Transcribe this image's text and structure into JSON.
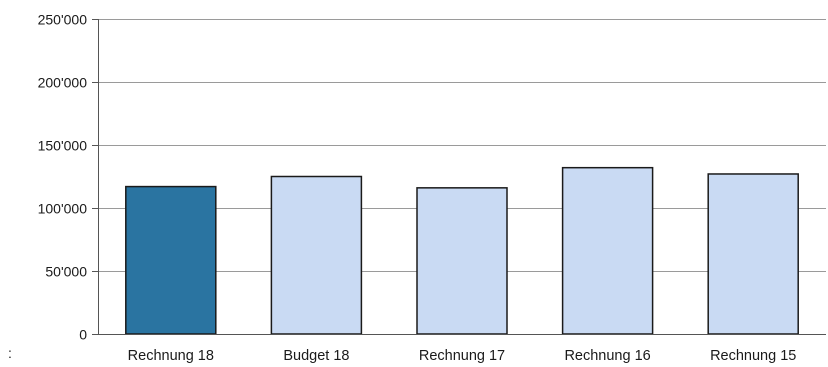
{
  "chart_data": {
    "type": "bar",
    "categories": [
      "Rechnung 18",
      "Budget 18",
      "Rechnung 17",
      "Rechnung 16",
      "Rechnung 15"
    ],
    "values": [
      117000,
      125000,
      116000,
      132000,
      127000
    ],
    "ylim": [
      0,
      250000
    ],
    "yticks": [
      0,
      50000,
      100000,
      150000,
      200000,
      250000
    ],
    "ytick_labels": [
      "0",
      "50'000",
      "100'000",
      "150'000",
      "200'000",
      "250'000"
    ],
    "grid": true,
    "legend": "none",
    "colors": {
      "highlight_bar": "#2a74a1",
      "bar": "#c9daf3",
      "bar_stroke": "#1a1a1a",
      "gridline": "#9a9a9a",
      "axis": "#555555"
    },
    "highlight_index": 0
  },
  "stray_mark": ":"
}
